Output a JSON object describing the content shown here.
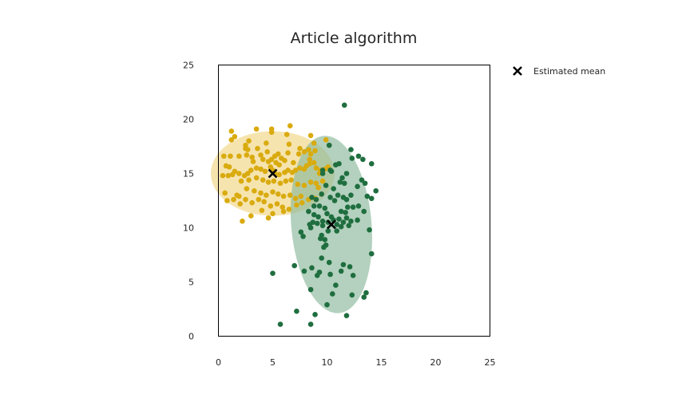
{
  "chart_data": {
    "type": "scatter",
    "title": "Article algorithm",
    "xlabel": "",
    "ylabel": "",
    "xlim": [
      0,
      25
    ],
    "ylim": [
      0,
      25
    ],
    "xticks": [
      0,
      5,
      10,
      15,
      20,
      25
    ],
    "yticks": [
      0,
      5,
      10,
      15,
      20,
      25
    ],
    "grid": false,
    "legend": {
      "position": "top-right-outside",
      "entries": [
        {
          "label": "Estimated mean",
          "marker": "x",
          "color": "#000000"
        }
      ]
    },
    "series": [
      {
        "color": "#d9ab0f",
        "mean": [
          5.0,
          15.0
        ],
        "ellipse": {
          "center": [
            5.0,
            15.0
          ],
          "semi_axes": [
            5.7,
            3.9
          ],
          "angle_deg": 0,
          "fill": "#f0d27a",
          "opacity": 0.6
        },
        "points": [
          [
            1.2,
            18.9
          ],
          [
            1.5,
            18.4
          ],
          [
            1.2,
            18.1
          ],
          [
            2.5,
            17.6
          ],
          [
            2.5,
            17.3
          ],
          [
            2.7,
            17.2
          ],
          [
            3.5,
            19.1
          ],
          [
            4.9,
            19.1
          ],
          [
            4.9,
            18.8
          ],
          [
            6.6,
            19.4
          ],
          [
            6.3,
            18.6
          ],
          [
            8.5,
            18.5
          ],
          [
            8.8,
            17.8
          ],
          [
            9.9,
            18.1
          ],
          [
            10.2,
            17.6
          ],
          [
            6.5,
            17.7
          ],
          [
            7.5,
            17.3
          ],
          [
            8.3,
            17.2
          ],
          [
            7.4,
            16.8
          ],
          [
            6.4,
            16.9
          ],
          [
            6.1,
            16.2
          ],
          [
            5.8,
            16.4
          ],
          [
            5.2,
            16.6
          ],
          [
            4.9,
            16.3
          ],
          [
            4.6,
            16.1
          ],
          [
            4.1,
            16.3
          ],
          [
            3.9,
            16.7
          ],
          [
            3.1,
            16.5
          ],
          [
            2.6,
            16.7
          ],
          [
            1.9,
            16.6
          ],
          [
            0.5,
            16.6
          ],
          [
            1.1,
            16.6
          ],
          [
            4.5,
            17.0
          ],
          [
            7.9,
            17.0
          ],
          [
            8.5,
            16.8
          ],
          [
            8.9,
            17.1
          ],
          [
            5.3,
            16.0
          ],
          [
            5.6,
            15.8
          ],
          [
            4.8,
            15.6
          ],
          [
            5.0,
            15.3
          ],
          [
            5.2,
            15.0
          ],
          [
            5.6,
            14.9
          ],
          [
            6.1,
            15.1
          ],
          [
            6.4,
            15.3
          ],
          [
            6.8,
            15.1
          ],
          [
            7.1,
            15.3
          ],
          [
            7.5,
            15.5
          ],
          [
            7.9,
            15.4
          ],
          [
            8.1,
            15.7
          ],
          [
            8.4,
            15.9
          ],
          [
            8.8,
            16.0
          ],
          [
            9.0,
            15.5
          ],
          [
            9.4,
            15.3
          ],
          [
            9.8,
            15.4
          ],
          [
            10.1,
            15.6
          ],
          [
            4.3,
            15.2
          ],
          [
            3.9,
            15.4
          ],
          [
            3.5,
            15.5
          ],
          [
            3.0,
            15.3
          ],
          [
            2.7,
            15.0
          ],
          [
            2.4,
            14.8
          ],
          [
            1.9,
            15.0
          ],
          [
            1.5,
            15.2
          ],
          [
            1.0,
            15.6
          ],
          [
            0.7,
            15.7
          ],
          [
            1.3,
            14.9
          ],
          [
            0.9,
            14.8
          ],
          [
            0.4,
            14.8
          ],
          [
            2.1,
            14.3
          ],
          [
            2.8,
            14.4
          ],
          [
            3.5,
            14.6
          ],
          [
            4.1,
            14.4
          ],
          [
            4.6,
            14.2
          ],
          [
            5.1,
            14.3
          ],
          [
            5.7,
            14.1
          ],
          [
            6.2,
            14.3
          ],
          [
            6.7,
            14.4
          ],
          [
            7.3,
            14.0
          ],
          [
            7.9,
            13.9
          ],
          [
            8.5,
            14.2
          ],
          [
            9.0,
            14.1
          ],
          [
            9.6,
            14.3
          ],
          [
            2.6,
            13.6
          ],
          [
            3.3,
            13.4
          ],
          [
            3.9,
            13.2
          ],
          [
            4.4,
            13.0
          ],
          [
            5.0,
            13.3
          ],
          [
            5.5,
            13.1
          ],
          [
            6.0,
            12.9
          ],
          [
            6.6,
            13.0
          ],
          [
            7.1,
            12.7
          ],
          [
            7.6,
            12.9
          ],
          [
            8.3,
            12.6
          ],
          [
            8.9,
            12.7
          ],
          [
            1.4,
            12.6
          ],
          [
            1.9,
            12.9
          ],
          [
            2.5,
            12.6
          ],
          [
            3.1,
            12.3
          ],
          [
            3.7,
            12.6
          ],
          [
            4.2,
            12.4
          ],
          [
            4.8,
            12.0
          ],
          [
            5.4,
            12.2
          ],
          [
            5.9,
            11.9
          ],
          [
            6.5,
            11.7
          ],
          [
            7.2,
            12.1
          ],
          [
            7.7,
            12.3
          ],
          [
            0.8,
            12.5
          ],
          [
            2.0,
            12.2
          ],
          [
            3.0,
            11.1
          ],
          [
            4.0,
            11.6
          ],
          [
            5.0,
            11.3
          ],
          [
            6.0,
            11.5
          ],
          [
            4.6,
            10.9
          ],
          [
            2.2,
            10.6
          ],
          [
            1.7,
            13.0
          ],
          [
            0.6,
            13.2
          ],
          [
            9.3,
            15.0
          ],
          [
            9.2,
            13.7
          ],
          [
            8.4,
            16.3
          ],
          [
            6.9,
            16.0
          ],
          [
            5.5,
            16.8
          ],
          [
            3.6,
            17.3
          ],
          [
            2.8,
            18.0
          ],
          [
            4.4,
            17.8
          ],
          [
            3.2,
            16.1
          ]
        ]
      },
      {
        "color": "#1f6e3f",
        "mean": [
          10.4,
          10.3
        ],
        "ellipse": {
          "center": [
            10.4,
            10.3
          ],
          "semi_axes": [
            3.7,
            8.2
          ],
          "angle_deg": -5,
          "fill": "#8ab89b",
          "opacity": 0.65
        },
        "points": [
          [
            11.6,
            21.3
          ],
          [
            10.2,
            17.6
          ],
          [
            12.2,
            17.2
          ],
          [
            12.9,
            16.6
          ],
          [
            12.3,
            16.4
          ],
          [
            13.3,
            16.3
          ],
          [
            14.1,
            15.9
          ],
          [
            11.1,
            15.9
          ],
          [
            10.8,
            15.8
          ],
          [
            11.8,
            15.0
          ],
          [
            10.4,
            15.2
          ],
          [
            9.6,
            15.3
          ],
          [
            9.6,
            15.0
          ],
          [
            10.3,
            15.3
          ],
          [
            11.4,
            14.6
          ],
          [
            11.2,
            14.2
          ],
          [
            11.6,
            14.1
          ],
          [
            13.2,
            14.4
          ],
          [
            13.5,
            14.1
          ],
          [
            12.8,
            13.8
          ],
          [
            14.5,
            13.4
          ],
          [
            14.1,
            12.7
          ],
          [
            13.7,
            12.9
          ],
          [
            12.9,
            12.0
          ],
          [
            12.4,
            11.9
          ],
          [
            13.4,
            11.5
          ],
          [
            11.7,
            11.4
          ],
          [
            11.9,
            11.9
          ],
          [
            11.3,
            11.5
          ],
          [
            11.8,
            10.9
          ],
          [
            12.2,
            10.6
          ],
          [
            12.8,
            10.7
          ],
          [
            11.5,
            10.5
          ],
          [
            11.1,
            10.8
          ],
          [
            10.9,
            10.3
          ],
          [
            10.6,
            10.7
          ],
          [
            10.1,
            10.5
          ],
          [
            10.4,
            11.0
          ],
          [
            10.0,
            11.3
          ],
          [
            9.8,
            11.8
          ],
          [
            9.3,
            12.0
          ],
          [
            8.8,
            12.0
          ],
          [
            8.3,
            11.5
          ],
          [
            8.8,
            11.2
          ],
          [
            9.2,
            11.0
          ],
          [
            9.6,
            10.6
          ],
          [
            8.7,
            10.5
          ],
          [
            8.4,
            10.3
          ],
          [
            8.5,
            10.0
          ],
          [
            9.1,
            10.4
          ],
          [
            9.6,
            10.2
          ],
          [
            10.1,
            9.7
          ],
          [
            10.9,
            9.7
          ],
          [
            11.3,
            10.1
          ],
          [
            12.0,
            10.2
          ],
          [
            9.5,
            9.3
          ],
          [
            9.8,
            8.9
          ],
          [
            9.4,
            9.0
          ],
          [
            7.6,
            9.6
          ],
          [
            7.8,
            9.2
          ],
          [
            10.3,
            12.8
          ],
          [
            10.7,
            12.5
          ],
          [
            11.0,
            13.0
          ],
          [
            11.5,
            12.8
          ],
          [
            12.2,
            13.0
          ],
          [
            10.6,
            13.6
          ],
          [
            9.9,
            13.9
          ],
          [
            9.5,
            13.1
          ],
          [
            9.0,
            12.6
          ],
          [
            8.6,
            12.8
          ],
          [
            11.8,
            12.6
          ],
          [
            13.9,
            9.8
          ],
          [
            9.9,
            8.4
          ],
          [
            9.7,
            8.2
          ],
          [
            14.1,
            7.6
          ],
          [
            9.5,
            7.2
          ],
          [
            7.0,
            6.5
          ],
          [
            7.9,
            6.0
          ],
          [
            8.6,
            6.3
          ],
          [
            10.2,
            6.8
          ],
          [
            11.5,
            6.6
          ],
          [
            12.1,
            6.4
          ],
          [
            9.3,
            5.9
          ],
          [
            9.1,
            5.6
          ],
          [
            10.3,
            5.7
          ],
          [
            11.3,
            6.0
          ],
          [
            12.4,
            5.6
          ],
          [
            5.0,
            5.8
          ],
          [
            10.8,
            4.7
          ],
          [
            8.5,
            4.3
          ],
          [
            10.5,
            3.9
          ],
          [
            12.3,
            3.8
          ],
          [
            13.6,
            4.0
          ],
          [
            13.4,
            3.6
          ],
          [
            10.0,
            2.9
          ],
          [
            7.2,
            2.3
          ],
          [
            8.9,
            2.0
          ],
          [
            11.8,
            1.9
          ],
          [
            5.7,
            1.1
          ],
          [
            8.5,
            1.1
          ]
        ]
      }
    ]
  }
}
